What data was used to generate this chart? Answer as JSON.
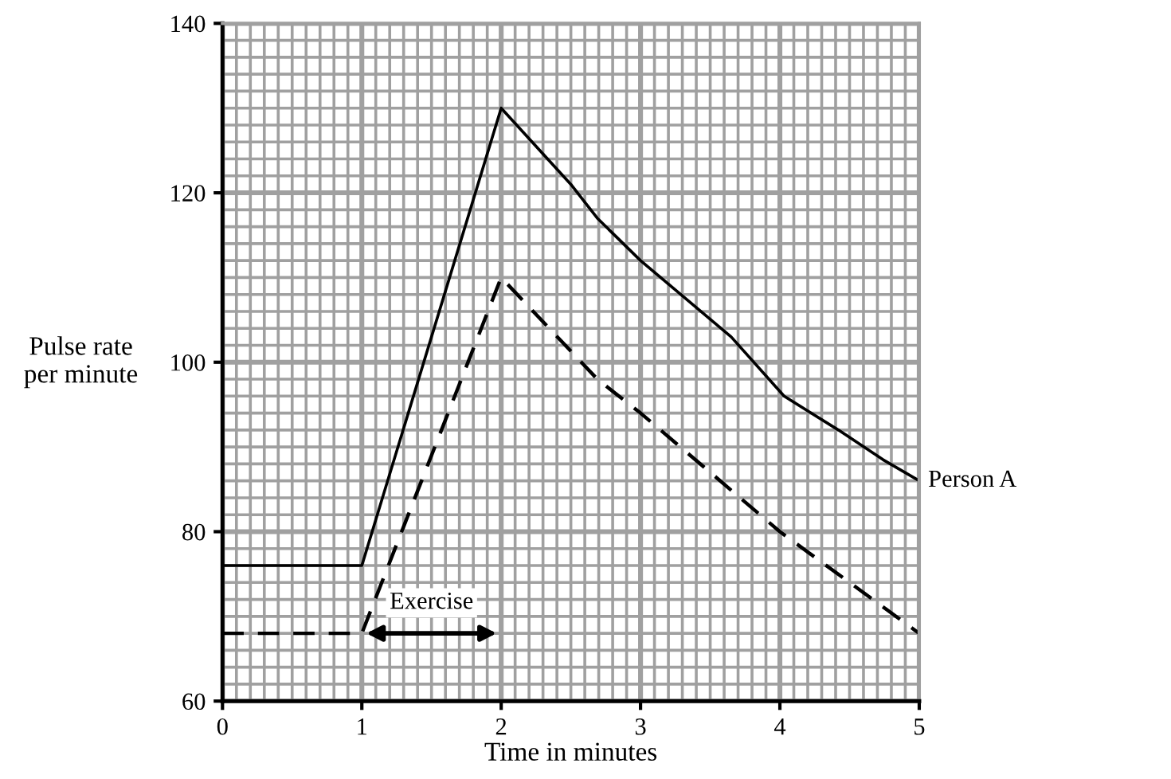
{
  "chart_data": {
    "type": "line",
    "xlabel": "Time in minutes",
    "ylabel": "Pulse rate\nper minute",
    "xlim": [
      0,
      5
    ],
    "ylim": [
      60,
      140
    ],
    "xticks": [
      0,
      1,
      2,
      3,
      4,
      5
    ],
    "yticks": [
      60,
      80,
      100,
      120,
      140
    ],
    "grid": true,
    "legend": false,
    "series": [
      {
        "name": "Person A",
        "color": "#000000",
        "line_style": "solid",
        "x": [
          0,
          1,
          2,
          2.5,
          2.69,
          3,
          3.65,
          4.03,
          4.42,
          4.74,
          5
        ],
        "values": [
          76,
          76,
          130,
          121,
          117,
          112,
          103,
          96,
          92,
          88.5,
          86
        ]
      },
      {
        "color": "#000000",
        "line_style": "dashed",
        "x": [
          0,
          1,
          2,
          2.69,
          3,
          4,
          5
        ],
        "values": [
          68,
          68,
          110,
          98,
          94,
          80,
          68
        ]
      }
    ],
    "annotations": [
      "Exercise"
    ]
  }
}
